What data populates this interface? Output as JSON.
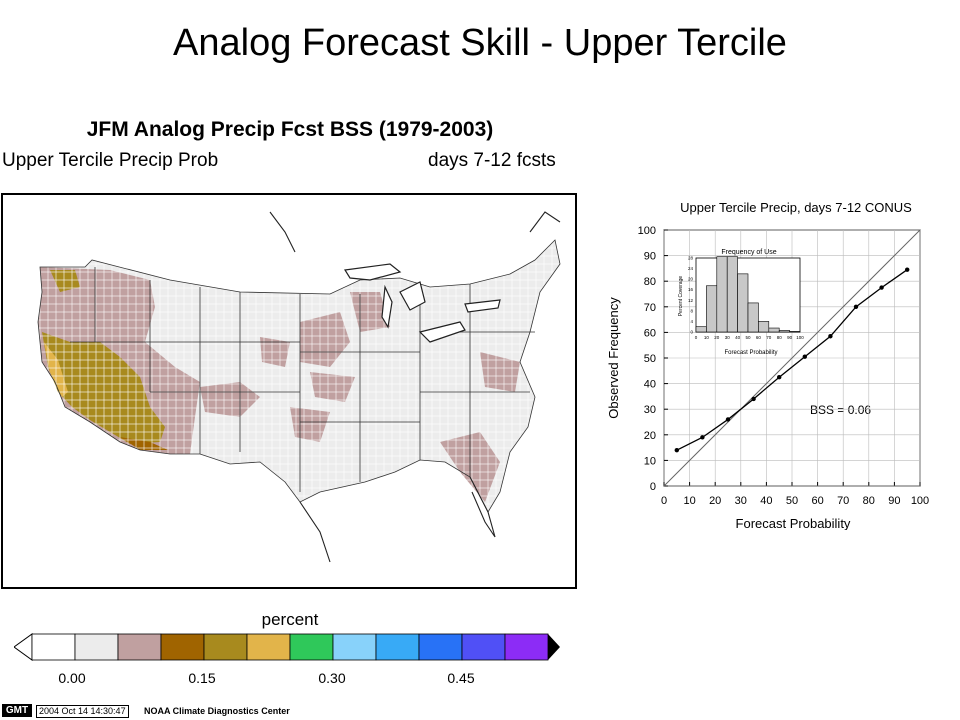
{
  "slide": {
    "title": "Analog Forecast Skill - Upper Tercile"
  },
  "map": {
    "title": "JFM Analog Precip Fcst BSS (1979-2003)",
    "subtitle_left": "Upper Tercile Precip Prob",
    "subtitle_right": "days 7-12 fcsts"
  },
  "colorbar": {
    "label": "percent",
    "ticks": [
      "0.00",
      "0.15",
      "0.30",
      "0.45"
    ],
    "colors": [
      "#ffffff",
      "#ececec",
      "#c0a0a0",
      "#a06400",
      "#a88a1e",
      "#e2b44a",
      "#2fc85a",
      "#88d2fa",
      "#38aaf6",
      "#2872f6",
      "#5050f6",
      "#8c2cf6"
    ]
  },
  "footer": {
    "logo": "GMT",
    "timestamp": "2004 Oct 14 14:30:47",
    "center": "NOAA Climate Diagnostics Center"
  },
  "chart_data": [
    {
      "type": "line",
      "title": "Upper Tercile Precip, days 7-12 CONUS",
      "xlabel": "Forecast Probability",
      "ylabel": "Observed Frequency",
      "xlim": [
        0,
        100
      ],
      "ylim": [
        0,
        100
      ],
      "xticks": [
        "0",
        "10",
        "20",
        "30",
        "40",
        "50",
        "60",
        "70",
        "80",
        "90",
        "100"
      ],
      "yticks": [
        "0",
        "10",
        "20",
        "30",
        "40",
        "50",
        "60",
        "70",
        "80",
        "90",
        "100"
      ],
      "x": [
        5,
        15,
        25,
        35,
        45,
        55,
        65,
        75,
        85,
        95
      ],
      "y": [
        14,
        19,
        26,
        34,
        42.5,
        50.5,
        58.5,
        70,
        77.5,
        84.5
      ],
      "reference_line": "diagonal",
      "annotation": "BSS = 0.06",
      "grid": true
    },
    {
      "type": "bar",
      "title": "Frequency of Use",
      "xlabel": "Forecast Probability",
      "ylabel": "Percent Coverage",
      "xlim": [
        0,
        100
      ],
      "ylim": [
        0,
        28
      ],
      "xticks": [
        "0",
        "10",
        "20",
        "30",
        "40",
        "50",
        "60",
        "70",
        "80",
        "90",
        "100"
      ],
      "yticks": [
        "0",
        "4",
        "8",
        "12",
        "16",
        "20",
        "24",
        "28"
      ],
      "categories": [
        "5",
        "15",
        "25",
        "35",
        "45",
        "55",
        "65",
        "75",
        "85",
        "95"
      ],
      "values": [
        2,
        17.5,
        28.5,
        28.5,
        22,
        11,
        4,
        1.5,
        0.6,
        0.2
      ]
    }
  ]
}
